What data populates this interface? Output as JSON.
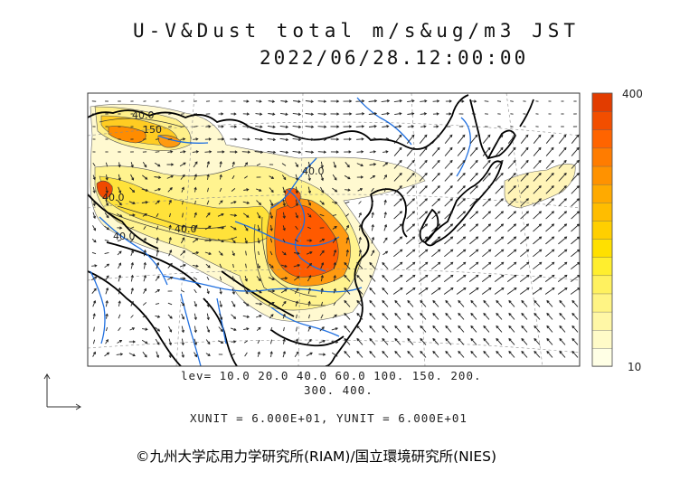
{
  "header": {
    "title": "U-V&Dust total m/s&ug/m3 JST",
    "timestamp": "2022/06/28.12:00:00"
  },
  "map": {
    "contour_labels": [
      "40.0",
      "150",
      "40.0",
      "40.0",
      "40.0",
      "40.0"
    ],
    "colors": {
      "frame": "#333333",
      "coastline": "#000000",
      "rivers": "#1f6fe0",
      "graticule": "#888888",
      "wind_arrows": "#222222"
    }
  },
  "legend": {
    "lev_line1": "lev= 10.0 20.0 40.0 60.0 100. 150. 200.",
    "lev_line2": "300. 400.",
    "units": "XUNIT = 6.000E+01, YUNIT = 6.000E+01",
    "colorbar_max": "400",
    "colorbar_min": "10",
    "colorbar_colors": [
      "#ffffe5",
      "#fffbc8",
      "#fff7a6",
      "#fff484",
      "#fff15f",
      "#ffee2e",
      "#ffe000",
      "#ffcf00",
      "#ffbd00",
      "#ffaa00",
      "#ff9200",
      "#ff7c00",
      "#ff6400",
      "#f24e00",
      "#e23c00"
    ]
  },
  "credit": "©九州大学応用力学研究所(RIAM)/国立環境研究所(NIES)"
}
